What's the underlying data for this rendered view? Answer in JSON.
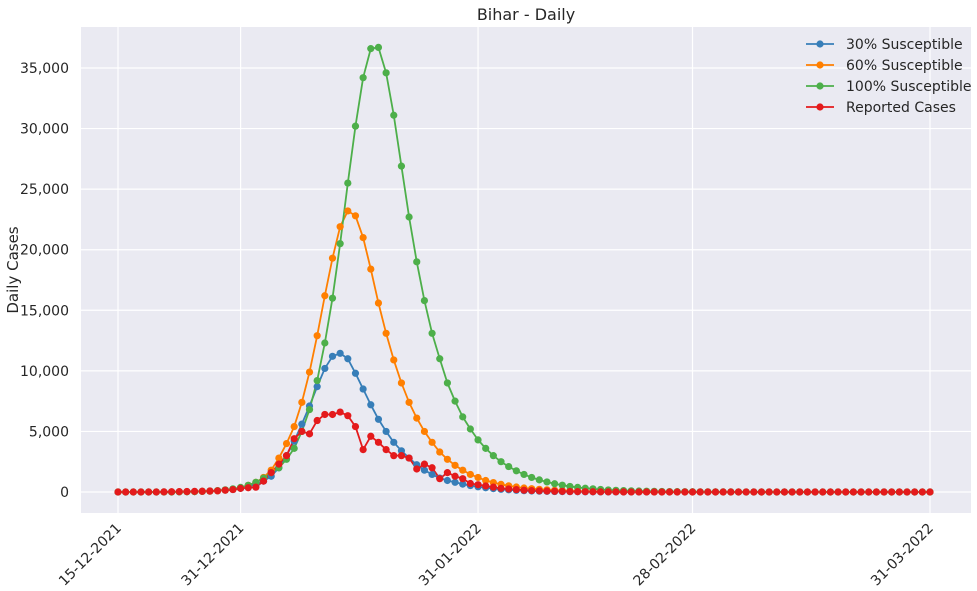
{
  "chart_data": {
    "type": "line",
    "title": "Bihar - Daily",
    "xlabel": "",
    "ylabel": "Daily Cases",
    "x_start": "15-12-2021",
    "x_end": "31-03-2022",
    "x_ticks": [
      "15-12-2021",
      "31-12-2021",
      "31-01-2022",
      "28-02-2022",
      "31-03-2022"
    ],
    "y_ticks": [
      "0",
      "5,000",
      "10,000",
      "15,000",
      "20,000",
      "25,000",
      "30,000",
      "35,000"
    ],
    "ylim": [
      -1800,
      38500
    ],
    "grid": true,
    "legend_position": "top-right",
    "colors": {
      "background": "#EAEAF2",
      "grid": "#FFFFFF"
    },
    "series": [
      {
        "name": "30% Susceptible",
        "color": "#377EB8",
        "values": [
          0,
          0,
          0,
          0,
          0,
          0,
          0,
          0,
          10,
          20,
          30,
          50,
          70,
          100,
          150,
          200,
          300,
          450,
          650,
          900,
          1300,
          2000,
          3000,
          4200,
          5600,
          7100,
          8700,
          10200,
          11200,
          11450,
          11000,
          9800,
          8500,
          7200,
          6000,
          5000,
          4100,
          3400,
          2800,
          2250,
          1800,
          1450,
          1150,
          950,
          800,
          650,
          530,
          430,
          350,
          280,
          220,
          180,
          140,
          110,
          85,
          65,
          50,
          40,
          30,
          25,
          20,
          15,
          10,
          8,
          5,
          3,
          2,
          1,
          0,
          0,
          0,
          0,
          0,
          0,
          0,
          0,
          0,
          0,
          0,
          0,
          0,
          0,
          0,
          0,
          0,
          0,
          0,
          0,
          0,
          0,
          0,
          0,
          0,
          0,
          0,
          0,
          0,
          0,
          0,
          0,
          0,
          0,
          0,
          0,
          0,
          0,
          0
        ]
      },
      {
        "name": "60% Susceptible",
        "color": "#FF7F00",
        "values": [
          0,
          0,
          0,
          0,
          0,
          0,
          0,
          0,
          10,
          20,
          30,
          50,
          70,
          100,
          150,
          220,
          350,
          550,
          800,
          1200,
          1800,
          2800,
          4000,
          5400,
          7400,
          9900,
          12900,
          16200,
          19300,
          21900,
          23200,
          22800,
          21000,
          18400,
          15600,
          13100,
          10900,
          9000,
          7400,
          6100,
          5000,
          4100,
          3300,
          2700,
          2200,
          1800,
          1450,
          1200,
          950,
          780,
          630,
          510,
          410,
          330,
          270,
          220,
          180,
          145,
          120,
          95,
          75,
          60,
          48,
          38,
          30,
          24,
          19,
          15,
          12,
          9,
          7,
          5,
          4,
          3,
          2,
          1,
          0,
          0,
          0,
          0,
          0,
          0,
          0,
          0,
          0,
          0,
          0,
          0,
          0,
          0,
          0,
          0,
          0,
          0,
          0,
          0,
          0,
          0,
          0,
          0,
          0,
          0,
          0,
          0,
          0,
          0,
          0
        ]
      },
      {
        "name": "100% Susceptible",
        "color": "#4DAF4A",
        "values": [
          0,
          0,
          0,
          0,
          0,
          0,
          0,
          0,
          10,
          20,
          30,
          50,
          80,
          120,
          180,
          260,
          380,
          550,
          800,
          1150,
          1600,
          2000,
          2700,
          3600,
          5000,
          6800,
          9200,
          12300,
          16000,
          20500,
          25500,
          30200,
          34200,
          36600,
          36700,
          34600,
          31100,
          26900,
          22700,
          19000,
          15800,
          13100,
          11000,
          9000,
          7500,
          6200,
          5200,
          4300,
          3600,
          3000,
          2500,
          2100,
          1750,
          1450,
          1200,
          1000,
          830,
          680,
          560,
          460,
          380,
          310,
          260,
          210,
          170,
          140,
          120,
          100,
          80,
          65,
          55,
          45,
          38,
          30,
          25,
          20,
          17,
          14,
          12,
          10,
          8,
          7,
          6,
          5,
          4,
          3,
          3,
          2,
          2,
          2,
          1,
          1,
          1,
          1,
          0,
          0,
          0,
          0,
          0,
          0,
          0,
          0,
          0,
          0,
          0,
          0,
          0
        ]
      },
      {
        "name": "Reported Cases",
        "color": "#E41A1C",
        "values": [
          0,
          0,
          0,
          0,
          0,
          0,
          10,
          20,
          30,
          40,
          50,
          60,
          80,
          100,
          150,
          200,
          300,
          350,
          400,
          900,
          1600,
          2300,
          3000,
          4400,
          5000,
          4800,
          5900,
          6400,
          6400,
          6600,
          6300,
          5400,
          3500,
          4600,
          4100,
          3500,
          3000,
          3000,
          2800,
          1900,
          2300,
          2000,
          1100,
          1600,
          1300,
          1100,
          700,
          600,
          500,
          400,
          300,
          250,
          200,
          150,
          120,
          100,
          80,
          60,
          50,
          40,
          30,
          25,
          20,
          15,
          12,
          10,
          8,
          6,
          5,
          4,
          3,
          2,
          2,
          1,
          1,
          1,
          0,
          0,
          0,
          0,
          0,
          0,
          0,
          0,
          0,
          0,
          0,
          0,
          0,
          0,
          0,
          0,
          0,
          0,
          0,
          0,
          0,
          0,
          0,
          0,
          0,
          0,
          0,
          0,
          0,
          0,
          0
        ]
      }
    ]
  }
}
